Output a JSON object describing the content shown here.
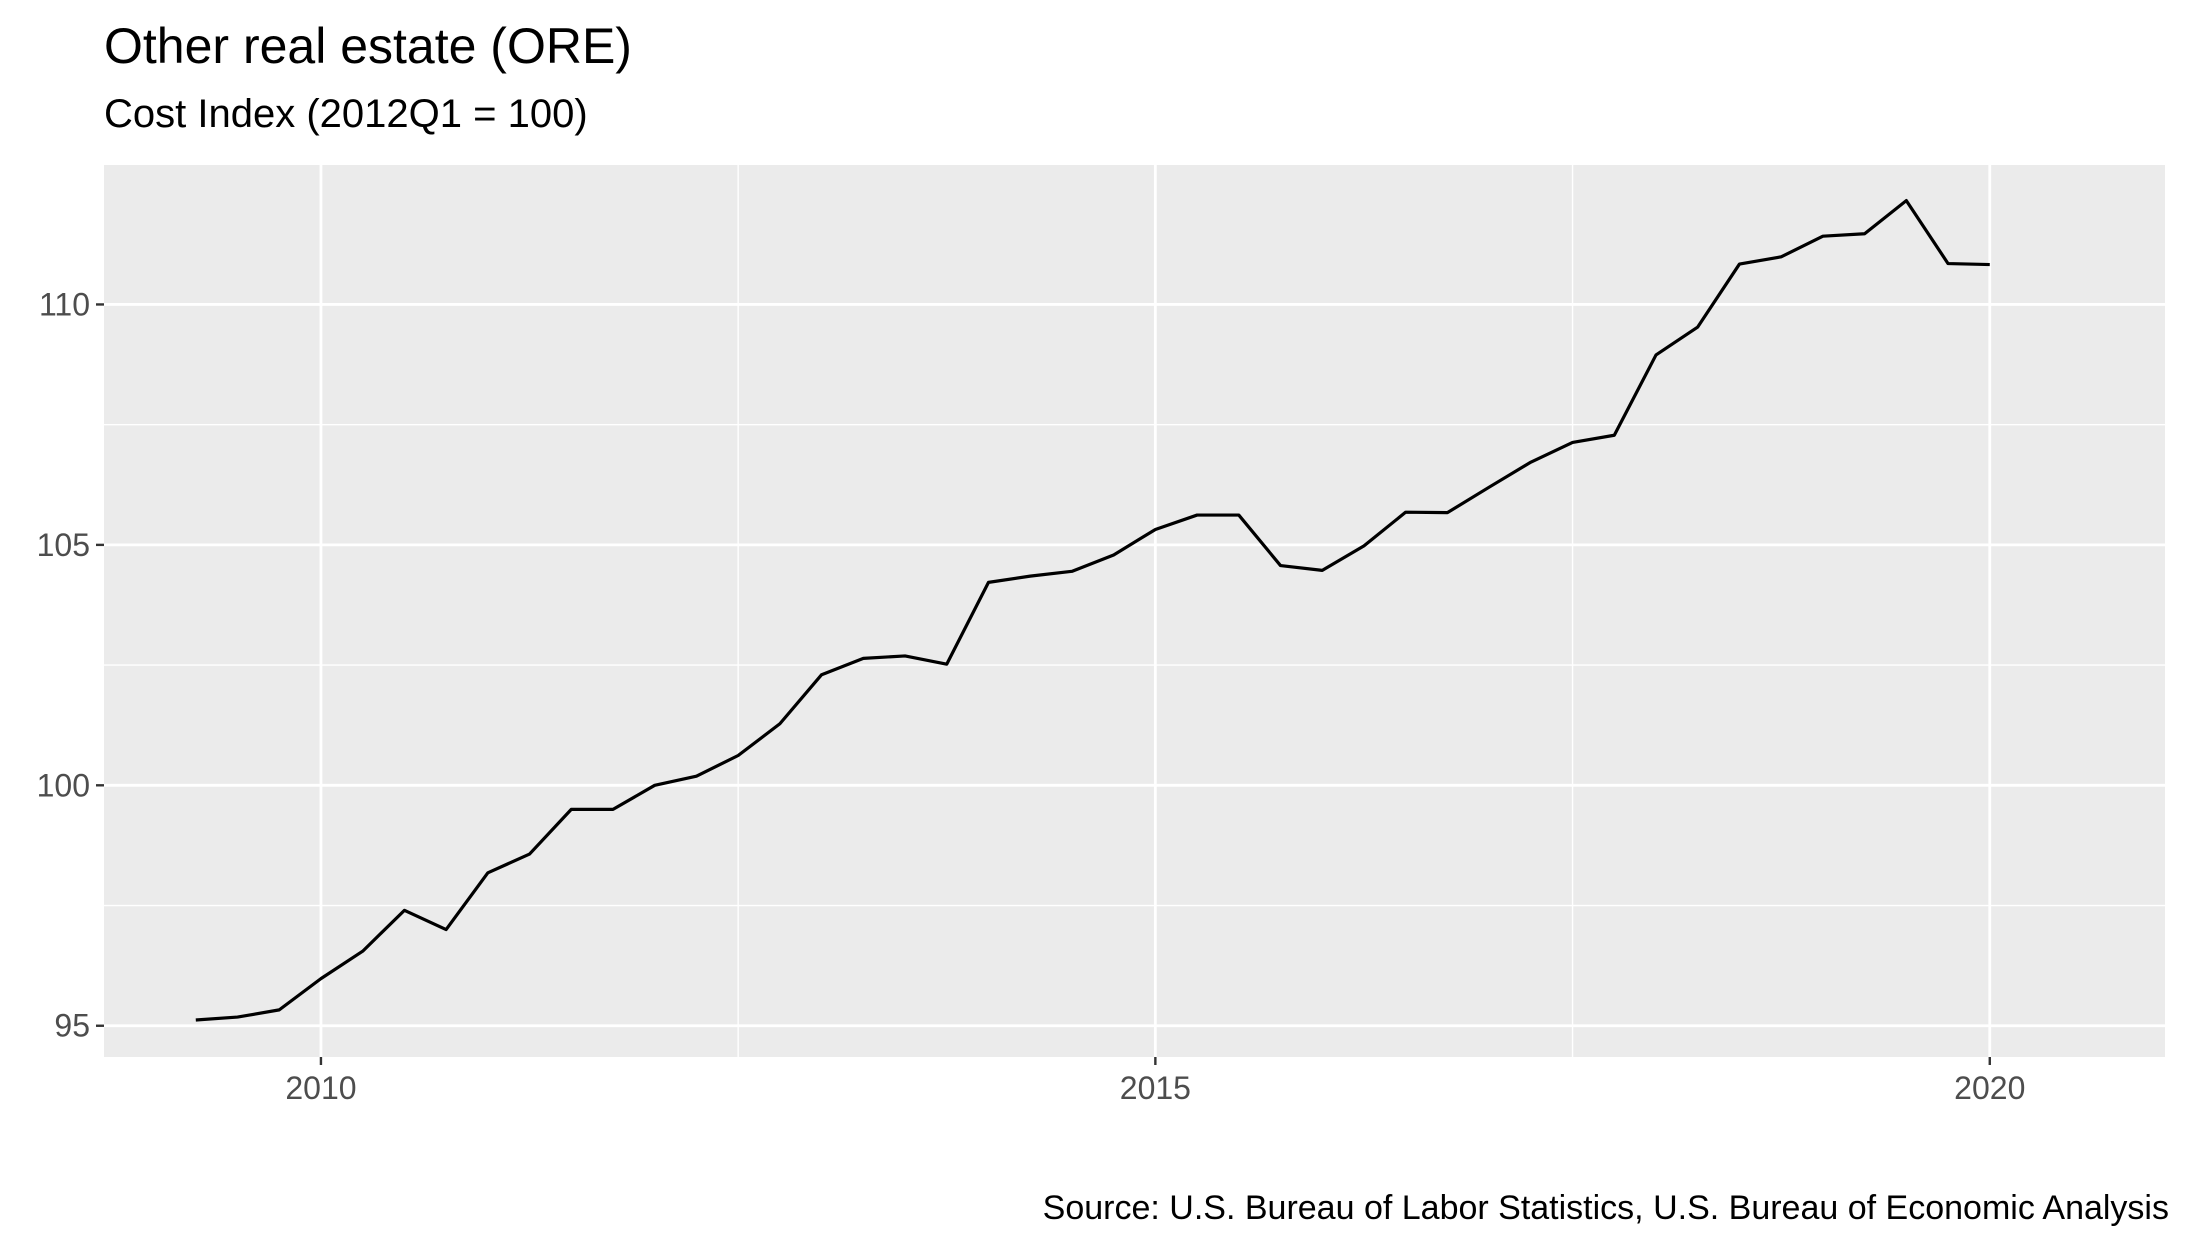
{
  "title": "Other real estate (ORE)",
  "subtitle": "Cost Index (2012Q1 = 100)",
  "caption": "Source: U.S. Bureau of Labor Statistics, U.S. Bureau of Economic Analysis",
  "chart_data": {
    "type": "line",
    "title": "Other real estate (ORE)",
    "subtitle": "Cost Index (2012Q1 = 100)",
    "xlabel": "",
    "ylabel": "",
    "xlim": [
      2008.7,
      2021.05
    ],
    "ylim": [
      94.35,
      112.9
    ],
    "x_ticks": [
      2010,
      2015,
      2020
    ],
    "x_tick_labels": [
      "2010",
      "2015",
      "2020"
    ],
    "y_ticks": [
      95,
      100,
      105,
      110
    ],
    "y_tick_labels": [
      "95",
      "100",
      "105",
      "110"
    ],
    "grid": true,
    "legend": "none",
    "line_color": "#000000",
    "panel_background": "#ebebeb",
    "grid_color": "#ffffff",
    "series": [
      {
        "x": [
          2009.25,
          2009.5,
          2009.75,
          2010.0,
          2010.25,
          2010.5,
          2010.75,
          2011.0,
          2011.25,
          2011.5,
          2011.75,
          2012.0,
          2012.25,
          2012.5,
          2012.75,
          2013.0,
          2013.25,
          2013.5,
          2013.75,
          2014.0,
          2014.25,
          2014.5,
          2014.75,
          2015.0,
          2015.25,
          2015.5,
          2015.75,
          2016.0,
          2016.25,
          2016.5,
          2016.75,
          2017.0,
          2017.25,
          2017.5,
          2017.75,
          2018.0,
          2018.25,
          2018.5,
          2018.75,
          2019.0,
          2019.25,
          2019.5,
          2019.75,
          2020.0
        ],
        "values": [
          95.12,
          95.18,
          95.33,
          95.98,
          96.55,
          97.4,
          97.0,
          98.18,
          98.57,
          99.5,
          99.5,
          100.0,
          100.19,
          100.62,
          101.28,
          102.3,
          102.64,
          102.69,
          102.52,
          104.22,
          104.35,
          104.45,
          104.79,
          105.32,
          105.62,
          105.62,
          104.57,
          104.47,
          104.98,
          105.68,
          105.67,
          106.2,
          106.72,
          107.13,
          107.28,
          108.95,
          109.53,
          110.84,
          110.99,
          111.42,
          111.47,
          112.16,
          110.85,
          110.83
        ]
      }
    ]
  }
}
